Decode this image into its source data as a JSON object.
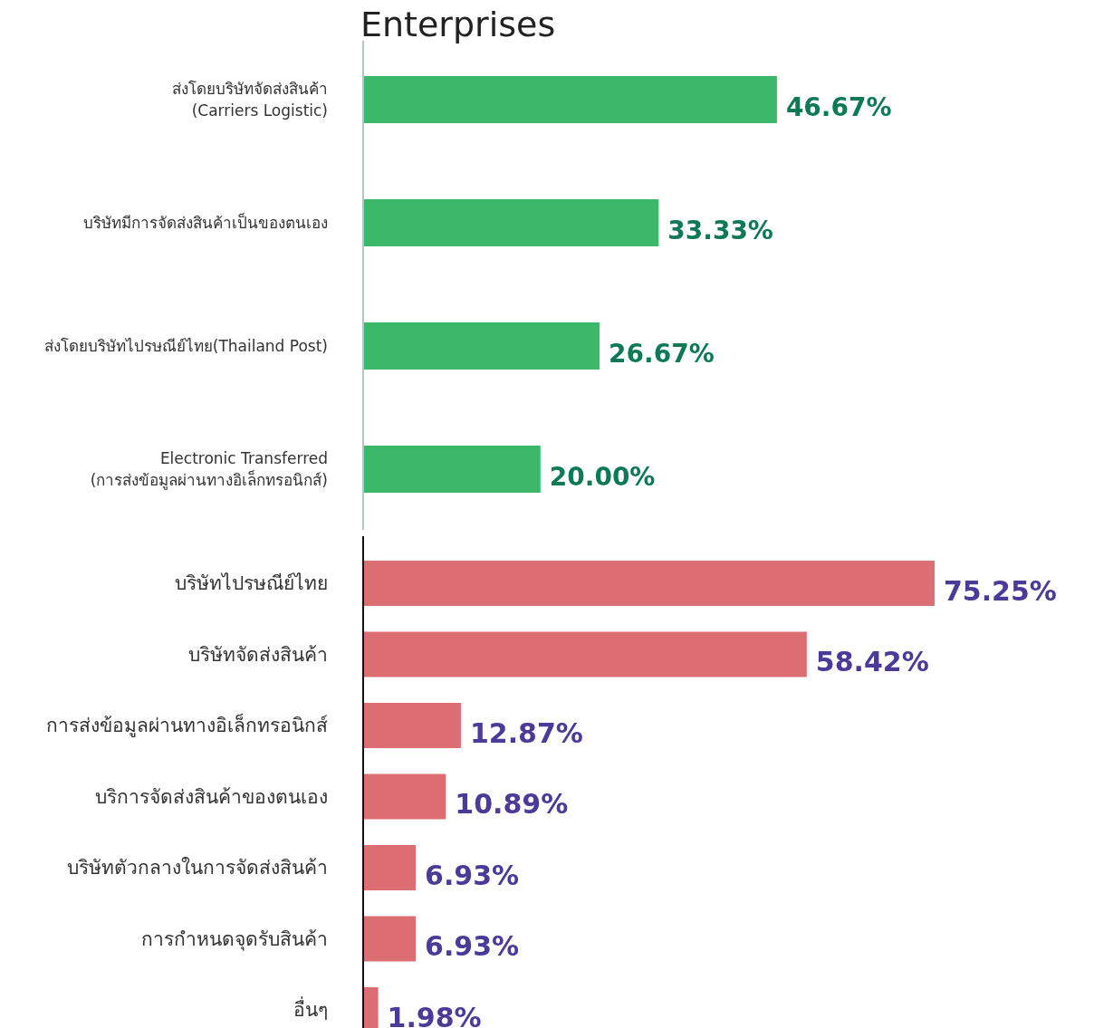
{
  "chart_data": [
    {
      "type": "bar",
      "orientation": "horizontal",
      "title": "Enterprises",
      "categories": [
        "ส่งโดยบริษัทจัดส่งสินค้า\n(Carriers Logistic)",
        "บริษัทมีการจัดส่งสินค้าเป็นของตนเอง",
        "ส่งโดยบริษัทไปรษณีย์ไทย(Thailand Post)",
        "Electronic Transferred\n(การส่งข้อมูลผ่านทางอิเล็กทรอนิกส์)"
      ],
      "values": [
        46.67,
        33.33,
        26.67,
        20.0
      ],
      "value_labels": [
        "46.67%",
        "33.33%",
        "26.67%",
        "20.00%"
      ],
      "color": "#3cb86a"
    },
    {
      "type": "bar",
      "orientation": "horizontal",
      "categories": [
        "บริษัทไปรษณีย์ไทย",
        "บริษัทจัดส่งสินค้า",
        "การส่งข้อมูลผ่านทางอิเล็กทรอนิกส์",
        "บริการจัดส่งสินค้าของตนเอง",
        "บริษัทตัวกลางในการจัดส่งสินค้า",
        "การกำหนดจุดรับสินค้า",
        "อื่นๆ"
      ],
      "values": [
        75.25,
        58.42,
        12.87,
        10.89,
        6.93,
        6.93,
        1.98
      ],
      "value_labels": [
        "75.25%",
        "58.42%",
        "12.87%",
        "10.89%",
        "6.93%",
        "6.93%",
        "1.98%"
      ],
      "color": "#dc6e73"
    }
  ]
}
